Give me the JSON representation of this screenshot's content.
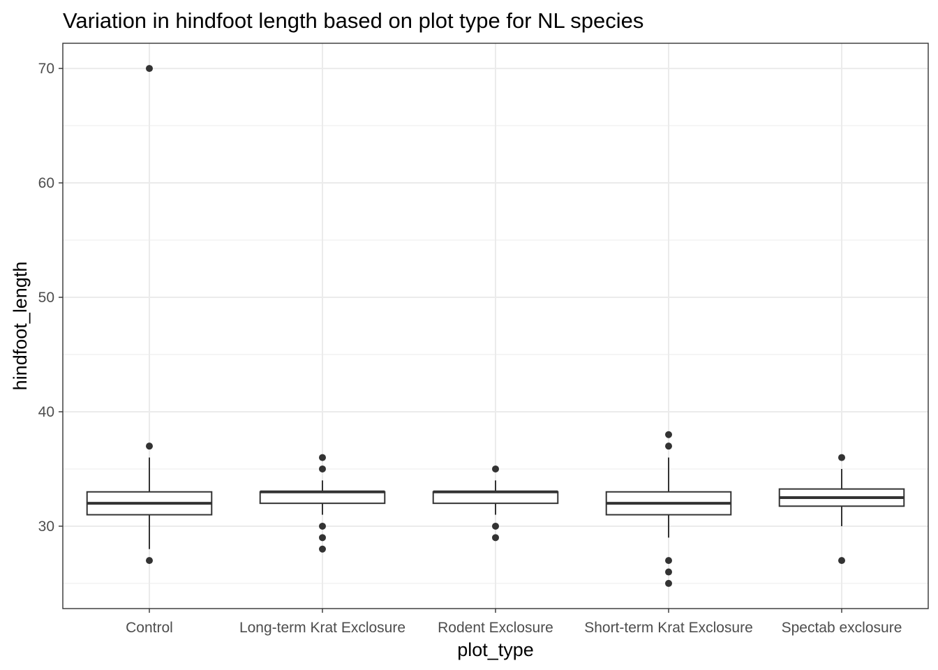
{
  "chart_data": {
    "type": "boxplot",
    "title": "Variation in hindfoot length based on plot type for NL species",
    "xlabel": "plot_type",
    "ylabel": "hindfoot_length",
    "ylim": [
      22.8,
      72.2
    ],
    "yticks": [
      30,
      40,
      50,
      60,
      70
    ],
    "grid": true,
    "colors": {
      "box_stroke": "#333333",
      "box_fill": "#ffffff",
      "grid": "#ebebeb",
      "panel_border": "#333333",
      "outlier": "#333333"
    },
    "categories": [
      "Control",
      "Long-term Krat Exclosure",
      "Rodent Exclosure",
      "Short-term Krat Exclosure",
      "Spectab exclosure"
    ],
    "boxes": [
      {
        "category": "Control",
        "lower_whisker": 28,
        "q1": 31,
        "median": 32,
        "q3": 33,
        "upper_whisker": 36,
        "outliers": [
          27,
          37,
          70
        ]
      },
      {
        "category": "Long-term Krat Exclosure",
        "lower_whisker": 31,
        "q1": 32,
        "median": 33,
        "q3": 33,
        "upper_whisker": 34,
        "outliers": [
          28,
          29,
          30,
          35,
          36
        ]
      },
      {
        "category": "Rodent Exclosure",
        "lower_whisker": 31,
        "q1": 32,
        "median": 33,
        "q3": 33,
        "upper_whisker": 34,
        "outliers": [
          29,
          30,
          35
        ]
      },
      {
        "category": "Short-term Krat Exclosure",
        "lower_whisker": 29,
        "q1": 31,
        "median": 32,
        "q3": 33,
        "upper_whisker": 36,
        "outliers": [
          25,
          26,
          27,
          37,
          38
        ]
      },
      {
        "category": "Spectab exclosure",
        "lower_whisker": 30,
        "q1": 31.75,
        "median": 32.5,
        "q3": 33.25,
        "upper_whisker": 35,
        "outliers": [
          27,
          36
        ]
      }
    ]
  }
}
